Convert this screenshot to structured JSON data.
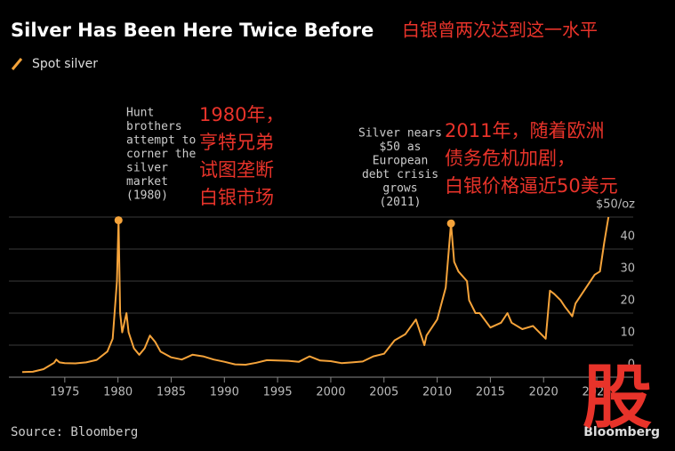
{
  "chart_data": {
    "type": "line",
    "title": "Silver Has Been Here Twice Before",
    "title_cn": "白银曾两次达到这一水平",
    "source": "Source: Bloomberg",
    "brand": "Bloomberg",
    "logo": "股",
    "background": "#000000",
    "grid": true,
    "x": [
      1971,
      1972,
      1973,
      1974,
      1974.2,
      1974.5,
      1975,
      1976,
      1977,
      1978,
      1979,
      1979.5,
      1979.9,
      1980.05,
      1980.2,
      1980.4,
      1980.8,
      1981,
      1981.5,
      1982,
      1982.5,
      1983,
      1983.5,
      1984,
      1985,
      1986,
      1987,
      1988,
      1989,
      1990,
      1991,
      1992,
      1993,
      1994,
      1995,
      1996,
      1997,
      1998,
      1999,
      2000,
      2001,
      2002,
      2003,
      2004,
      2005,
      2006,
      2007,
      2008,
      2008.8,
      2009,
      2010,
      2010.8,
      2011.3,
      2011.6,
      2012,
      2012.8,
      2013,
      2013.6,
      2014,
      2015,
      2016,
      2016.6,
      2017,
      2018,
      2019,
      2020.2,
      2020.6,
      2021,
      2021.6,
      2022,
      2022.7,
      2023,
      2024,
      2024.8,
      2025.3,
      2025.7,
      2026.1
    ],
    "series": [
      {
        "name": "Spot silver",
        "color": "#f5a33a",
        "values": [
          1.6,
          1.7,
          2.5,
          4.5,
          5.5,
          4.6,
          4.4,
          4.3,
          4.6,
          5.4,
          8,
          12,
          30,
          49,
          20,
          14,
          20,
          14,
          9,
          7,
          9,
          13,
          11,
          8,
          6.2,
          5.5,
          7,
          6.5,
          5.5,
          4.8,
          4,
          3.9,
          4.5,
          5.3,
          5.2,
          5.1,
          4.8,
          6.5,
          5.2,
          5,
          4.4,
          4.6,
          4.9,
          6.5,
          7.3,
          11.5,
          13.4,
          18,
          10,
          13,
          18,
          28,
          48,
          36,
          33,
          30,
          24,
          20,
          20,
          15.5,
          17,
          20,
          17,
          15,
          16,
          12,
          27,
          26,
          24,
          22,
          19,
          23,
          28,
          32,
          33,
          42,
          50
        ]
      }
    ],
    "xlim": [
      1970.5,
      2026.5
    ],
    "xticks": [
      1975,
      1980,
      1985,
      1990,
      1995,
      2000,
      2005,
      2010,
      2015,
      2020,
      2025
    ],
    "ylim": [
      0,
      50
    ],
    "yticks": [
      0,
      10,
      20,
      30,
      40,
      {
        "value": 50,
        "label": "$50/oz"
      }
    ],
    "annotations": [
      {
        "x": 1980.05,
        "y": 49,
        "lines": [
          "Hunt",
          "brothers",
          "attempt to",
          "corner the",
          "silver",
          "market",
          "(1980)"
        ],
        "lines_cn": [
          "1980年，",
          "亨特兄弟",
          "试图垄断",
          "白银市场"
        ]
      },
      {
        "x": 2011.3,
        "y": 48,
        "lines": [
          "Silver nears",
          "$50 as",
          "European",
          "debt crisis",
          "grows",
          "(2011)"
        ],
        "lines_cn": [
          "2011年，随着欧洲",
          "债务危机加剧，",
          "白银价格逼近50美元"
        ]
      }
    ]
  }
}
